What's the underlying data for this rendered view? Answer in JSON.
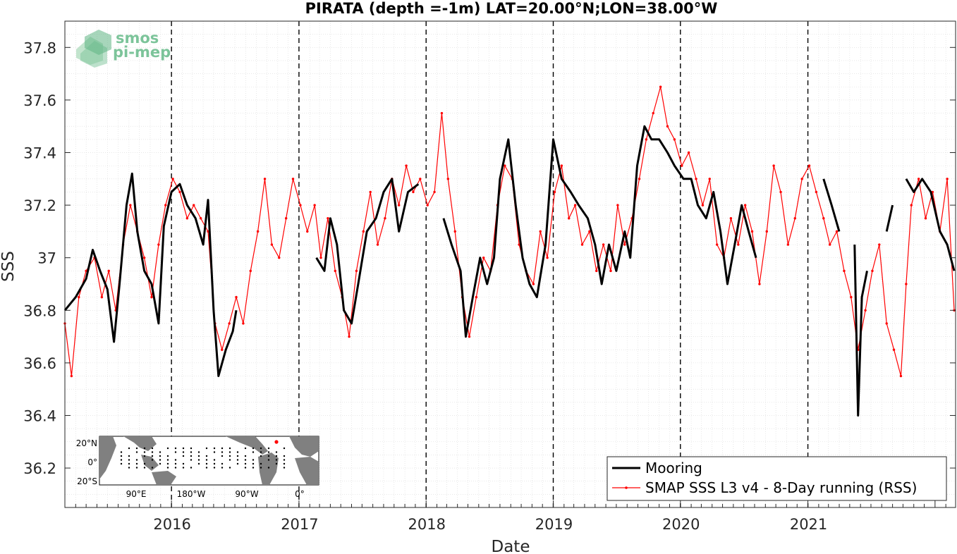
{
  "chart_data": {
    "type": "line",
    "title": "PIRATA (depth =-1m) LAT=20.00°N;LON=38.00°W",
    "xlabel": "Date",
    "ylabel": "SSS",
    "xlim": [
      "2015-03-01",
      "2022-03-01"
    ],
    "ylim": [
      36.05,
      37.9
    ],
    "x_ticks": [
      "2016",
      "2017",
      "2018",
      "2019",
      "2020",
      "2021"
    ],
    "x_tick_dates": [
      "2016-01-01",
      "2017-01-01",
      "2018-01-01",
      "2019-01-01",
      "2020-01-01",
      "2021-01-01"
    ],
    "y_ticks": [
      "36.2",
      "36.4",
      "36.6",
      "36.8",
      "37",
      "37.2",
      "37.4",
      "37.6",
      "37.8"
    ],
    "y_tick_values": [
      36.2,
      36.4,
      36.6,
      36.8,
      37.0,
      37.2,
      37.4,
      37.6,
      37.8
    ],
    "vertical_dashed_lines": [
      "2016-01-01",
      "2017-01-01",
      "2018-01-01",
      "2019-01-01",
      "2020-01-01",
      "2021-01-01"
    ],
    "grid": true,
    "legend_position": "bottom-right",
    "series": [
      {
        "name": "Mooring",
        "color": "#000000",
        "points": [
          [
            "2015-03-01",
            36.8
          ],
          [
            "2015-04-01",
            36.85
          ],
          [
            "2015-05-01",
            36.92
          ],
          [
            "2015-05-20",
            37.03
          ],
          [
            "2015-06-10",
            36.95
          ],
          [
            "2015-07-01",
            36.88
          ],
          [
            "2015-07-20",
            36.68
          ],
          [
            "2015-08-05",
            36.9
          ],
          [
            "2015-08-25",
            37.2
          ],
          [
            "2015-09-10",
            37.32
          ],
          [
            "2015-09-25",
            37.1
          ],
          [
            "2015-10-15",
            36.95
          ],
          [
            "2015-11-05",
            36.9
          ],
          [
            "2015-11-25",
            36.75
          ],
          [
            "2015-12-10",
            37.12
          ],
          [
            "2016-01-01",
            37.25
          ],
          [
            "2016-01-25",
            37.28
          ],
          [
            "2016-02-15",
            37.2
          ],
          [
            "2016-03-10",
            37.15
          ],
          [
            "2016-04-01",
            37.05
          ],
          [
            "2016-04-15",
            37.22
          ],
          [
            "2016-05-01",
            36.8
          ],
          [
            "2016-05-15",
            36.55
          ],
          [
            "2016-06-05",
            36.65
          ],
          [
            "2016-06-25",
            36.72
          ],
          [
            "2016-07-05",
            36.8
          ]
        ],
        "gap_after_2016_07": true,
        "points_2": [
          [
            "2017-02-20",
            37.0
          ],
          [
            "2017-03-15",
            36.95
          ],
          [
            "2017-04-01",
            37.15
          ],
          [
            "2017-04-20",
            37.05
          ],
          [
            "2017-05-10",
            36.8
          ],
          [
            "2017-06-01",
            36.75
          ],
          [
            "2017-06-20",
            36.9
          ],
          [
            "2017-07-15",
            37.1
          ],
          [
            "2017-08-10",
            37.15
          ],
          [
            "2017-09-01",
            37.25
          ],
          [
            "2017-09-25",
            37.3
          ],
          [
            "2017-10-15",
            37.1
          ],
          [
            "2017-11-10",
            37.25
          ],
          [
            "2017-12-10",
            37.28
          ]
        ],
        "points_3": [
          [
            "2018-02-20",
            37.15
          ],
          [
            "2018-03-15",
            37.05
          ],
          [
            "2018-04-10",
            36.95
          ],
          [
            "2018-04-25",
            36.7
          ],
          [
            "2018-05-15",
            36.85
          ],
          [
            "2018-06-05",
            37.0
          ],
          [
            "2018-06-25",
            36.9
          ],
          [
            "2018-07-15",
            37.0
          ],
          [
            "2018-08-01",
            37.3
          ],
          [
            "2018-08-25",
            37.45
          ],
          [
            "2018-09-15",
            37.2
          ],
          [
            "2018-10-05",
            37.0
          ],
          [
            "2018-10-25",
            36.9
          ],
          [
            "2018-11-15",
            36.85
          ],
          [
            "2018-12-10",
            37.05
          ],
          [
            "2019-01-01",
            37.45
          ],
          [
            "2019-01-25",
            37.3
          ],
          [
            "2019-02-20",
            37.25
          ],
          [
            "2019-03-15",
            37.2
          ],
          [
            "2019-04-10",
            37.15
          ],
          [
            "2019-05-01",
            37.05
          ],
          [
            "2019-05-20",
            36.9
          ],
          [
            "2019-06-10",
            37.05
          ],
          [
            "2019-07-01",
            36.95
          ],
          [
            "2019-07-25",
            37.1
          ],
          [
            "2019-08-10",
            37.0
          ],
          [
            "2019-08-30",
            37.35
          ],
          [
            "2019-09-20",
            37.5
          ],
          [
            "2019-10-10",
            37.45
          ],
          [
            "2019-11-01",
            37.45
          ],
          [
            "2019-11-25",
            37.4
          ],
          [
            "2019-12-15",
            37.35
          ],
          [
            "2020-01-10",
            37.3
          ],
          [
            "2020-02-01",
            37.3
          ],
          [
            "2020-02-20",
            37.2
          ],
          [
            "2020-03-15",
            37.15
          ],
          [
            "2020-04-05",
            37.25
          ],
          [
            "2020-04-25",
            37.1
          ],
          [
            "2020-05-15",
            36.9
          ],
          [
            "2020-06-05",
            37.05
          ],
          [
            "2020-06-25",
            37.2
          ],
          [
            "2020-07-15",
            37.1
          ],
          [
            "2020-08-05",
            37.0
          ]
        ],
        "points_4": [
          [
            "2021-02-15",
            37.3
          ],
          [
            "2021-03-10",
            37.2
          ],
          [
            "2021-04-01",
            37.1
          ]
        ],
        "points_5": [
          [
            "2021-05-15",
            37.05
          ],
          [
            "2021-05-25",
            36.4
          ],
          [
            "2021-06-05",
            36.85
          ],
          [
            "2021-06-20",
            36.95
          ]
        ],
        "points_6": [
          [
            "2021-08-15",
            37.1
          ],
          [
            "2021-09-01",
            37.2
          ]
        ],
        "points_7": [
          [
            "2021-10-10",
            37.3
          ],
          [
            "2021-11-01",
            37.25
          ],
          [
            "2021-11-25",
            37.3
          ],
          [
            "2021-12-20",
            37.25
          ],
          [
            "2022-01-15",
            37.1
          ],
          [
            "2022-02-05",
            37.05
          ],
          [
            "2022-02-25",
            36.95
          ]
        ]
      },
      {
        "name": "SMAP SSS L3 v4 - 8-Day running (RSS)",
        "color": "#ff0000",
        "points": [
          [
            "2015-03-01",
            36.75
          ],
          [
            "2015-03-20",
            36.55
          ],
          [
            "2015-04-10",
            36.85
          ],
          [
            "2015-05-01",
            36.95
          ],
          [
            "2015-05-25",
            37.0
          ],
          [
            "2015-06-15",
            36.85
          ],
          [
            "2015-07-05",
            36.95
          ],
          [
            "2015-07-25",
            36.8
          ],
          [
            "2015-08-15",
            37.05
          ],
          [
            "2015-09-05",
            37.2
          ],
          [
            "2015-09-25",
            37.1
          ],
          [
            "2015-10-15",
            37.0
          ],
          [
            "2015-11-05",
            36.85
          ],
          [
            "2015-11-25",
            37.05
          ],
          [
            "2015-12-15",
            37.2
          ],
          [
            "2016-01-05",
            37.3
          ],
          [
            "2016-01-25",
            37.25
          ],
          [
            "2016-02-15",
            37.15
          ],
          [
            "2016-03-05",
            37.2
          ],
          [
            "2016-03-25",
            37.15
          ],
          [
            "2016-04-15",
            37.1
          ],
          [
            "2016-05-05",
            36.75
          ],
          [
            "2016-05-25",
            36.65
          ],
          [
            "2016-06-15",
            36.75
          ],
          [
            "2016-07-05",
            36.85
          ],
          [
            "2016-07-25",
            36.75
          ],
          [
            "2016-08-15",
            36.95
          ],
          [
            "2016-09-05",
            37.1
          ],
          [
            "2016-09-25",
            37.3
          ],
          [
            "2016-10-15",
            37.05
          ],
          [
            "2016-11-05",
            37.0
          ],
          [
            "2016-11-25",
            37.15
          ],
          [
            "2016-12-15",
            37.3
          ],
          [
            "2017-01-05",
            37.2
          ],
          [
            "2017-01-25",
            37.1
          ],
          [
            "2017-02-15",
            37.2
          ],
          [
            "2017-03-05",
            37.0
          ],
          [
            "2017-03-25",
            37.15
          ],
          [
            "2017-04-15",
            36.95
          ],
          [
            "2017-05-05",
            36.85
          ],
          [
            "2017-05-25",
            36.7
          ],
          [
            "2017-06-15",
            36.95
          ],
          [
            "2017-07-05",
            37.1
          ],
          [
            "2017-07-25",
            37.25
          ],
          [
            "2017-08-15",
            37.05
          ],
          [
            "2017-09-05",
            37.15
          ],
          [
            "2017-09-25",
            37.3
          ],
          [
            "2017-10-15",
            37.2
          ],
          [
            "2017-11-05",
            37.35
          ],
          [
            "2017-11-25",
            37.25
          ],
          [
            "2017-12-15",
            37.3
          ],
          [
            "2018-01-05",
            37.2
          ],
          [
            "2018-01-25",
            37.25
          ],
          [
            "2018-02-15",
            37.55
          ],
          [
            "2018-03-05",
            37.3
          ],
          [
            "2018-03-25",
            37.1
          ],
          [
            "2018-04-15",
            36.85
          ],
          [
            "2018-05-05",
            36.7
          ],
          [
            "2018-05-25",
            36.85
          ],
          [
            "2018-06-15",
            37.0
          ],
          [
            "2018-07-05",
            36.95
          ],
          [
            "2018-07-25",
            37.2
          ],
          [
            "2018-08-15",
            37.35
          ],
          [
            "2018-09-05",
            37.3
          ],
          [
            "2018-09-25",
            37.05
          ],
          [
            "2018-10-15",
            36.95
          ],
          [
            "2018-11-05",
            36.9
          ],
          [
            "2018-11-25",
            37.1
          ],
          [
            "2018-12-15",
            37.0
          ],
          [
            "2019-01-05",
            37.25
          ],
          [
            "2019-01-25",
            37.35
          ],
          [
            "2019-02-15",
            37.15
          ],
          [
            "2019-03-05",
            37.2
          ],
          [
            "2019-03-25",
            37.05
          ],
          [
            "2019-04-15",
            37.1
          ],
          [
            "2019-05-05",
            36.95
          ],
          [
            "2019-05-25",
            37.05
          ],
          [
            "2019-06-15",
            36.95
          ],
          [
            "2019-07-05",
            37.2
          ],
          [
            "2019-07-25",
            37.05
          ],
          [
            "2019-08-15",
            37.15
          ],
          [
            "2019-09-05",
            37.3
          ],
          [
            "2019-09-25",
            37.45
          ],
          [
            "2019-10-15",
            37.55
          ],
          [
            "2019-11-05",
            37.65
          ],
          [
            "2019-11-25",
            37.5
          ],
          [
            "2019-12-15",
            37.45
          ],
          [
            "2020-01-05",
            37.35
          ],
          [
            "2020-01-25",
            37.4
          ],
          [
            "2020-02-15",
            37.3
          ],
          [
            "2020-03-05",
            37.2
          ],
          [
            "2020-03-25",
            37.3
          ],
          [
            "2020-04-15",
            37.05
          ],
          [
            "2020-05-05",
            37.0
          ],
          [
            "2020-05-25",
            37.15
          ],
          [
            "2020-06-15",
            37.05
          ],
          [
            "2020-07-05",
            37.2
          ],
          [
            "2020-07-25",
            37.1
          ],
          [
            "2020-08-15",
            36.9
          ],
          [
            "2020-09-05",
            37.1
          ],
          [
            "2020-09-25",
            37.35
          ],
          [
            "2020-10-15",
            37.25
          ],
          [
            "2020-11-05",
            37.05
          ],
          [
            "2020-11-25",
            37.15
          ],
          [
            "2020-12-15",
            37.3
          ],
          [
            "2021-01-05",
            37.35
          ],
          [
            "2021-01-25",
            37.25
          ],
          [
            "2021-02-15",
            37.15
          ],
          [
            "2021-03-05",
            37.05
          ],
          [
            "2021-03-25",
            37.1
          ],
          [
            "2021-04-15",
            36.95
          ],
          [
            "2021-05-05",
            36.85
          ],
          [
            "2021-05-25",
            36.65
          ],
          [
            "2021-06-15",
            36.8
          ],
          [
            "2021-07-05",
            36.95
          ],
          [
            "2021-07-25",
            37.05
          ],
          [
            "2021-08-15",
            36.75
          ],
          [
            "2021-09-05",
            36.65
          ],
          [
            "2021-09-25",
            36.55
          ],
          [
            "2021-10-10",
            36.9
          ],
          [
            "2021-10-25",
            37.2
          ],
          [
            "2021-11-15",
            37.3
          ],
          [
            "2021-12-05",
            37.15
          ],
          [
            "2021-12-25",
            37.25
          ],
          [
            "2022-01-15",
            37.1
          ],
          [
            "2022-02-05",
            37.3
          ],
          [
            "2022-02-25",
            36.8
          ]
        ]
      }
    ]
  },
  "legend": {
    "mooring_label": "Mooring",
    "smap_label": "SMAP SSS L3 v4 - 8-Day running (RSS)"
  },
  "logo": {
    "line1": "smos",
    "line2": "pi-mep"
  },
  "inset_map": {
    "y_labels": [
      "20°N",
      "0°",
      "20°S"
    ],
    "x_labels": [
      "90°E",
      "180°W",
      "90°W",
      "0°"
    ]
  }
}
